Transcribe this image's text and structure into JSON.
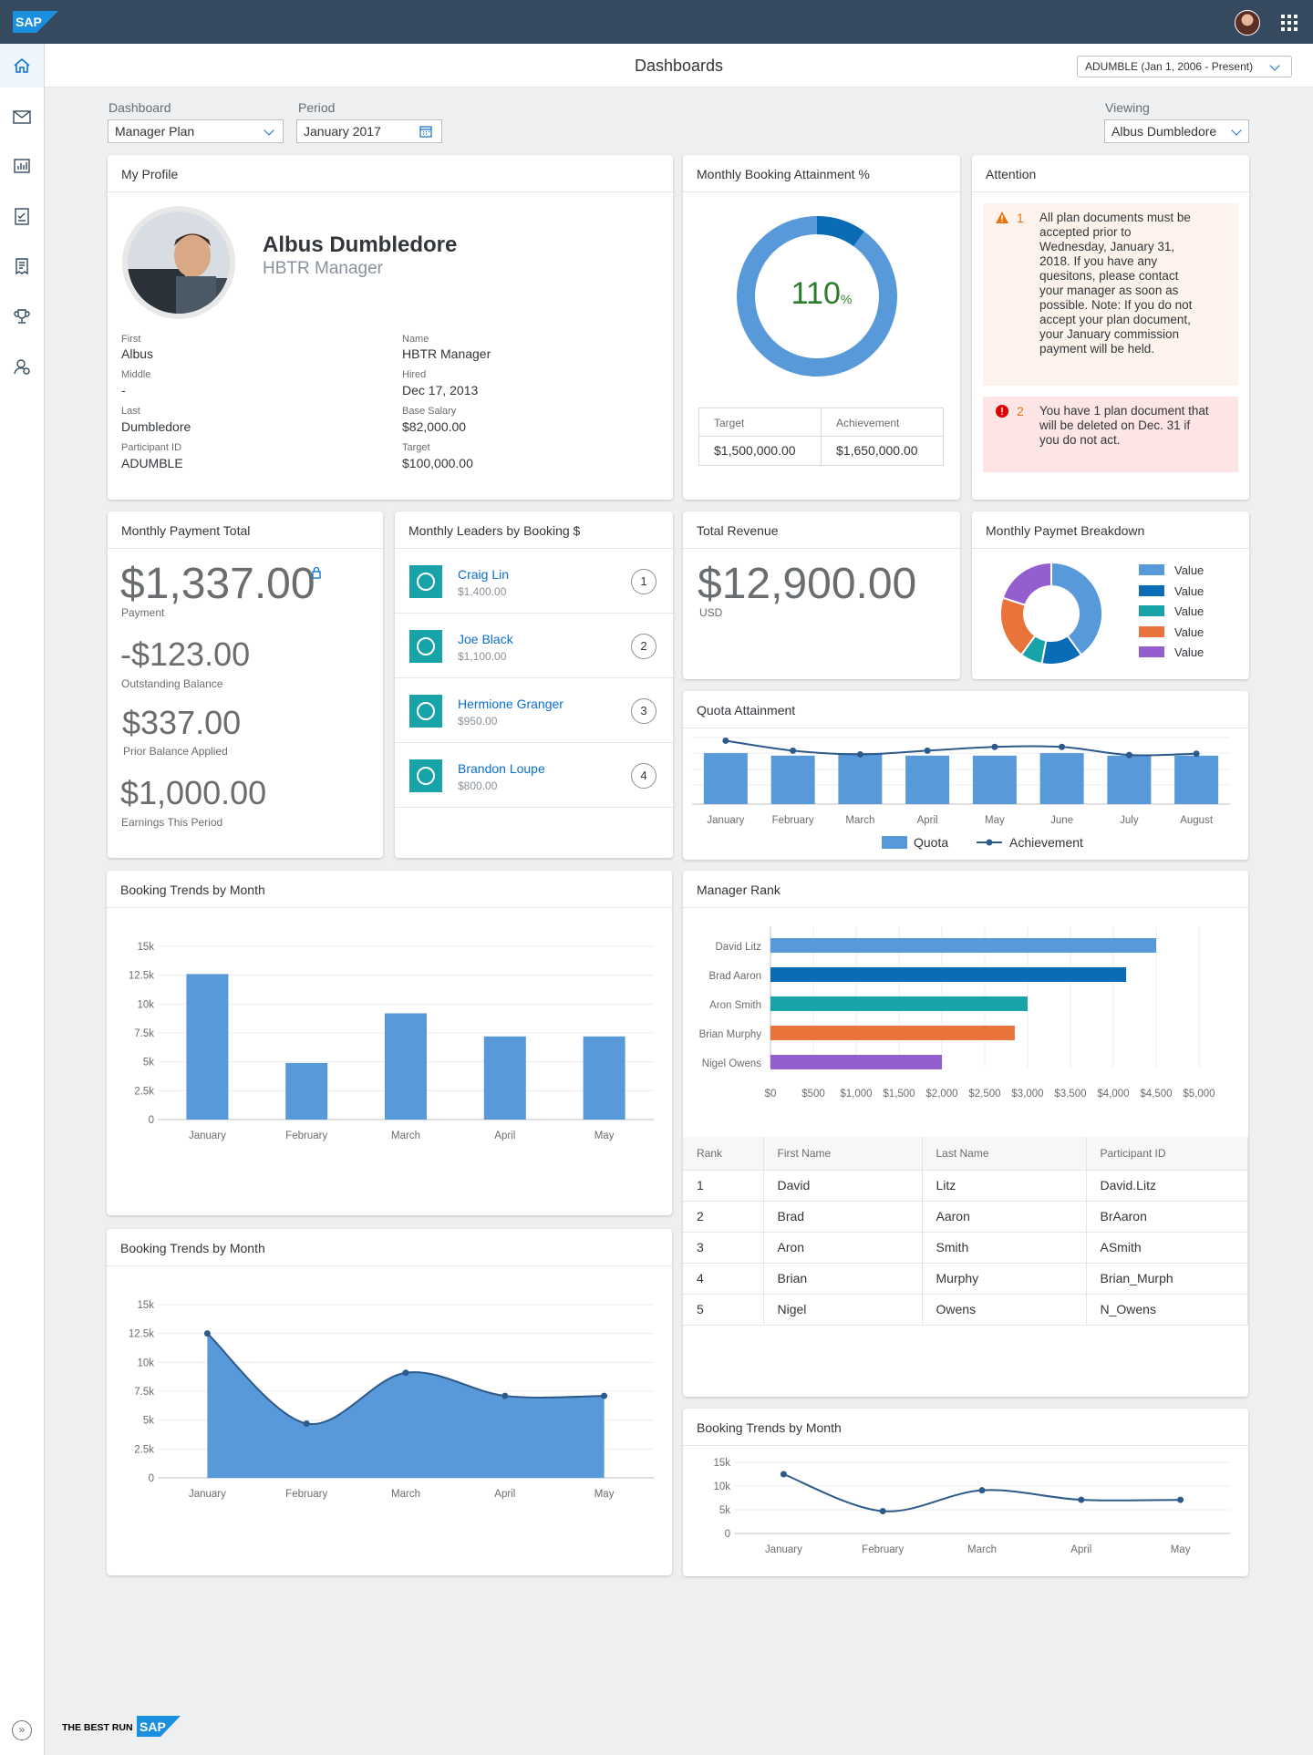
{
  "shell": {
    "brand": "SAP",
    "footer_slogan": "THE BEST RUN",
    "footer_brand": "SAP"
  },
  "header": {
    "title": "Dashboards",
    "period_selector": "ADUMBLE (Jan 1, 2006 - Present)"
  },
  "filters": {
    "dashboard_label": "Dashboard",
    "dashboard_value": "Manager Plan",
    "period_label": "Period",
    "period_value": "January 2017",
    "viewing_label": "Viewing",
    "viewing_value": "Albus Dumbledore"
  },
  "nav": [
    "home-icon",
    "mail-icon",
    "report-icon",
    "checklist-icon",
    "receipt-icon",
    "trophy-icon",
    "user-settings-icon"
  ],
  "profile": {
    "title": "My Profile",
    "name": "Albus Dumbledore",
    "role": "HBTR Manager",
    "fields": [
      {
        "label": "First",
        "value": "Albus"
      },
      {
        "label": "Middle",
        "value": "-"
      },
      {
        "label": "Last",
        "value": "Dumbledore"
      },
      {
        "label": "Participant ID",
        "value": "ADUMBLE"
      },
      {
        "label": "Name",
        "value": "HBTR Manager"
      },
      {
        "label": "Hired",
        "value": "Dec 17, 2013"
      },
      {
        "label": "Base Salary",
        "value": "$82,000.00"
      },
      {
        "label": "Target",
        "value": "$100,000.00"
      }
    ]
  },
  "attainment": {
    "title": "Monthly Booking Attainment %",
    "value": "110",
    "unit": "%",
    "percent": 110,
    "target_label": "Target",
    "achievement_label": "Achievement",
    "target_value": "$1,500,000.00",
    "achievement_value": "$1,650,000.00",
    "colors": {
      "base": "#5899da",
      "over": "#0a6cb4"
    }
  },
  "attention": {
    "title": "Attention",
    "items": [
      {
        "num": "1",
        "level": "warning",
        "text": "All plan documents must be accepted prior to Wednesday, January 31, 2018. If you have any quesitons, please contact your manager as soon as possible. Note: If you do not accept your plan document, your January commission payment will be held."
      },
      {
        "num": "2",
        "level": "error",
        "text": "You have 1 plan document that will be deleted on Dec. 31 if you do not act."
      }
    ]
  },
  "payment": {
    "title": "Monthly Payment Total",
    "items": [
      {
        "value": "$1,337.00",
        "label": "Payment"
      },
      {
        "value": "-$123.00",
        "label": "Outstanding Balance"
      },
      {
        "value": "$337.00",
        "label": "Prior Balance Applied"
      },
      {
        "value": "$1,000.00",
        "label": "Earnings This Period"
      }
    ]
  },
  "leaders": {
    "title": "Monthly Leaders by Booking $",
    "items": [
      {
        "name": "Craig Lin",
        "amount": "$1,400.00",
        "rank": "1"
      },
      {
        "name": "Joe Black",
        "amount": "$1,100.00",
        "rank": "2"
      },
      {
        "name": "Hermione Granger",
        "amount": "$950.00",
        "rank": "3"
      },
      {
        "name": "Brandon Loupe",
        "amount": "$800.00",
        "rank": "4"
      }
    ]
  },
  "revenue": {
    "title": "Total Revenue",
    "value": "$12,900.00",
    "unit": "USD"
  },
  "breakdown": {
    "title": "Monthly Paymet Breakdown",
    "legend": [
      "Value",
      "Value",
      "Value",
      "Value",
      "Value"
    ],
    "colors": [
      "#5899da",
      "#0a6cb4",
      "#17a3a8",
      "#e8743b",
      "#945ecf"
    ]
  },
  "chart_data": [
    {
      "id": "quota",
      "type": "bar",
      "title": "Quota Attainment",
      "categories": [
        "January",
        "February",
        "March",
        "April",
        "May",
        "June",
        "July",
        "August"
      ],
      "series": [
        {
          "name": "Quota",
          "values": [
            82,
            78,
            82,
            78,
            78,
            82,
            78,
            78
          ]
        },
        {
          "name": "Achievement",
          "values": [
            102,
            86,
            80,
            86,
            92,
            92,
            79,
            81
          ]
        }
      ],
      "ylim": [
        0,
        110
      ],
      "grid": true,
      "legend": "bottom"
    },
    {
      "id": "trend-bar",
      "type": "bar",
      "title": "Booking Trends by Month",
      "categories": [
        "January",
        "February",
        "March",
        "April",
        "May"
      ],
      "values": [
        12600,
        4900,
        9200,
        7200,
        7200
      ],
      "yticks": [
        "0",
        "2.5k",
        "5k",
        "7.5k",
        "10k",
        "12.5k",
        "15k"
      ],
      "ylim": [
        0,
        15000
      ],
      "grid": true
    },
    {
      "id": "trend-area",
      "type": "area",
      "title": "Booking Trends by Month",
      "categories": [
        "January",
        "February",
        "March",
        "April",
        "May"
      ],
      "values": [
        12500,
        4700,
        9100,
        7100,
        7100
      ],
      "yticks": [
        "0",
        "2.5k",
        "5k",
        "7.5k",
        "10k",
        "12.5k",
        "15k"
      ],
      "ylim": [
        0,
        15000
      ],
      "grid": true
    },
    {
      "id": "trend-line",
      "type": "line",
      "title": "Booking Trends by Month",
      "categories": [
        "January",
        "February",
        "March",
        "April",
        "May"
      ],
      "values": [
        12500,
        4700,
        9100,
        7100,
        7100
      ],
      "yticks": [
        "0",
        "5k",
        "10k",
        "15k"
      ],
      "ylim": [
        0,
        15000
      ],
      "grid": true
    },
    {
      "id": "manager-rank",
      "type": "bar",
      "orientation": "horizontal",
      "title": "Manager Rank",
      "categories": [
        "David Litz",
        "Brad Aaron",
        "Aron Smith",
        "Brian Murphy",
        "Nigel Owens"
      ],
      "values": [
        4500,
        4150,
        3000,
        2850,
        2000
      ],
      "colors": [
        "#5899da",
        "#0a6cb4",
        "#17a3a8",
        "#e8743b",
        "#945ecf"
      ],
      "xticks": [
        "$0",
        "$500",
        "$1,000",
        "$1,500",
        "$2,000",
        "$2,500",
        "$3,000",
        "$3,500",
        "$4,000",
        "$4,500",
        "$5,000"
      ],
      "xlim": [
        0,
        5000
      ],
      "grid": true
    },
    {
      "id": "breakdown-donut",
      "type": "pie",
      "title": "Monthly Paymet Breakdown",
      "values": [
        40,
        13,
        7,
        20,
        20
      ],
      "colors": [
        "#5899da",
        "#0a6cb4",
        "#17a3a8",
        "#e8743b",
        "#945ecf"
      ]
    }
  ],
  "rank_table": {
    "headers": [
      "Rank",
      "First Name",
      "Last Name",
      "Participant ID"
    ],
    "rows": [
      [
        "1",
        "David",
        "Litz",
        "David.Litz"
      ],
      [
        "2",
        "Brad",
        "Aaron",
        "BrAaron"
      ],
      [
        "3",
        "Aron",
        "Smith",
        "ASmith"
      ],
      [
        "4",
        "Brian",
        "Murphy",
        "Brian_Murph"
      ],
      [
        "5",
        "Nigel",
        "Owens",
        "N_Owens"
      ]
    ]
  }
}
